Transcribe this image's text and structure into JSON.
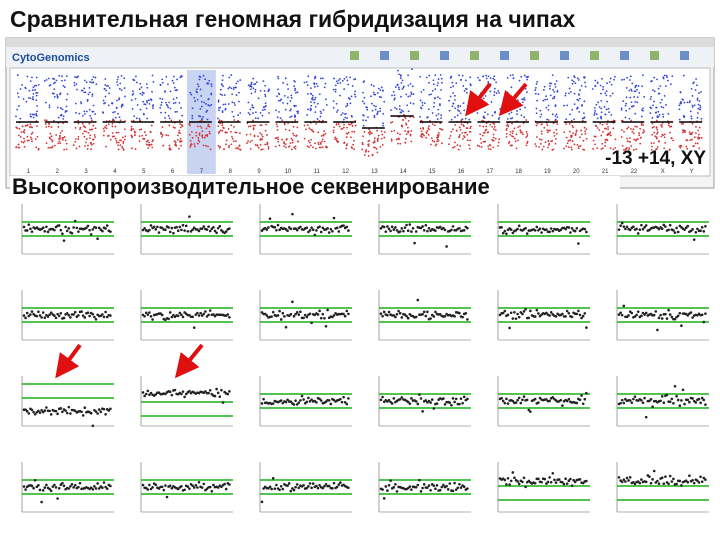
{
  "header": {
    "title": "Сравнительная геномная гибридизация на чипах"
  },
  "cgh": {
    "app_logo": "CytoGenomics",
    "chromosomes": [
      "1",
      "2",
      "3",
      "4",
      "5",
      "6",
      "7",
      "8",
      "9",
      "10",
      "11",
      "12",
      "13",
      "14",
      "15",
      "16",
      "17",
      "18",
      "19",
      "20",
      "21",
      "22",
      "X",
      "Y"
    ],
    "karyotype": "-13 +14, XY"
  },
  "ngs": {
    "title": "Высокопроизводительное секвенирование"
  }
}
